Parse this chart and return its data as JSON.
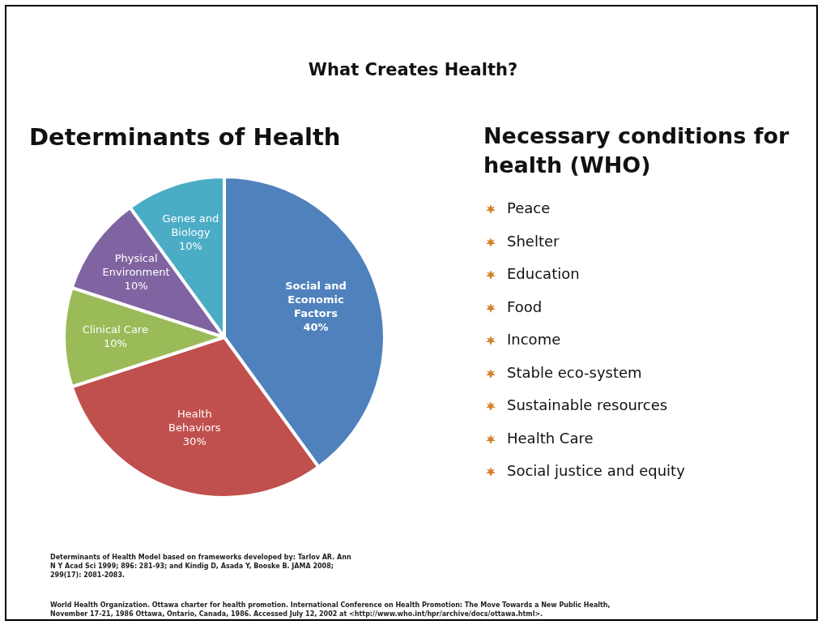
{
  "chart_data": [
    {
      "type": "pie",
      "title": "What Creates Health?",
      "subtitle": "Determinants of Health",
      "categories": [
        "Social and Economic Factors",
        "Health Behaviors",
        "Clinical Care",
        "Physical Environment",
        "Genes and Biology"
      ],
      "values": [
        40,
        30,
        10,
        10,
        10
      ],
      "value_labels": [
        "40%",
        "30%",
        "10%",
        "10%",
        "10%"
      ],
      "colors": [
        "#4f81bd",
        "#c0504d",
        "#9bbb59",
        "#8064a2",
        "#4bacc6"
      ],
      "data_labels": true,
      "annotations": [
        "Determinants of Health Model based on frameworks developed by: Tarlov AR. Ann N Y Acad Sci 1999; 896: 281-93; and Kindig D, Asada Y, Booske B. JAMA 2008; 299(17): 2081-2083.",
        "World Health Organization. Ottawa charter for health promotion. International Conference on Health Promotion: The Move Towards a New Public Health, November 17-21, 1986 Ottawa, Ontario, Canada, 1986. Accessed July 12, 2002 at <http://www.who.int/hpr/archive/docs/ottawa.html>."
      ]
    },
    {
      "type": "other",
      "title": "Necessary conditions for health (WHO)",
      "annotations": [
        "Peace",
        "Shelter",
        "Education",
        "Food",
        "Income",
        "Stable eco-system",
        "Sustainable resources",
        "Health Care",
        "Social justice and equity"
      ]
    }
  ]
}
